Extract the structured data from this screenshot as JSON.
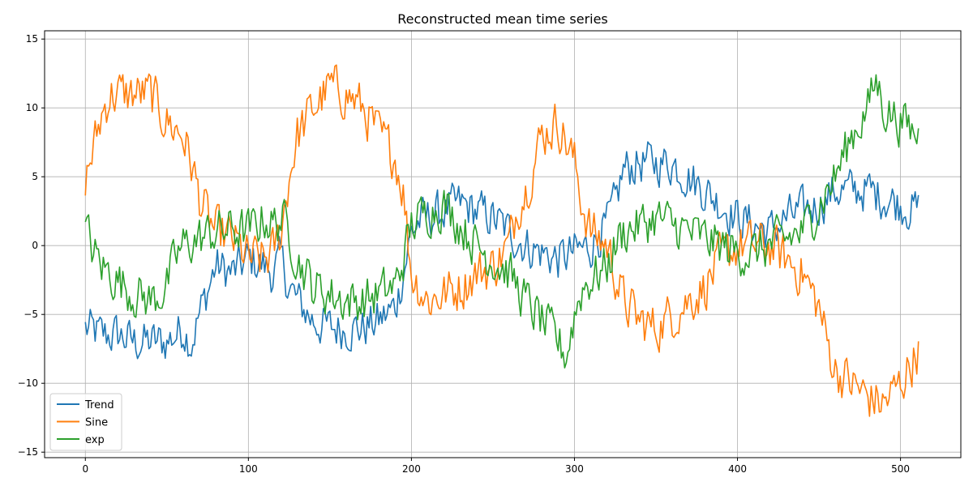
{
  "chart_data": {
    "type": "line",
    "title": "Reconstructed mean time series",
    "xlabel": "",
    "ylabel": "",
    "xlim": [
      -25,
      537
    ],
    "ylim": [
      -15.4,
      15.6
    ],
    "xticks": [
      0,
      100,
      200,
      300,
      400,
      500
    ],
    "yticks": [
      -15,
      -10,
      -5,
      0,
      5,
      10,
      15
    ],
    "grid": true,
    "legend_position": "lower-left",
    "n_points": 512,
    "series": [
      {
        "name": "Trend",
        "color": "#1f77b4",
        "keyframes": [
          [
            0,
            -6
          ],
          [
            10,
            -6.5
          ],
          [
            20,
            -6.5
          ],
          [
            30,
            -7
          ],
          [
            40,
            -7
          ],
          [
            50,
            -7
          ],
          [
            60,
            -6
          ],
          [
            65,
            -7
          ],
          [
            70,
            -5
          ],
          [
            80,
            -1.5
          ],
          [
            90,
            -2
          ],
          [
            100,
            -1
          ],
          [
            110,
            -1.5
          ],
          [
            115,
            -2
          ],
          [
            120,
            -1
          ],
          [
            125,
            -3
          ],
          [
            130,
            -4
          ],
          [
            140,
            -5.5
          ],
          [
            150,
            -6
          ],
          [
            160,
            -6
          ],
          [
            170,
            -6
          ],
          [
            180,
            -5.5
          ],
          [
            190,
            -4.5
          ],
          [
            195,
            -2
          ],
          [
            200,
            1
          ],
          [
            205,
            1.8
          ],
          [
            210,
            2
          ],
          [
            220,
            2.5
          ],
          [
            230,
            3
          ],
          [
            240,
            2.5
          ],
          [
            250,
            2
          ],
          [
            260,
            1
          ],
          [
            270,
            0
          ],
          [
            280,
            -0.5
          ],
          [
            290,
            -1
          ],
          [
            300,
            -0.5
          ],
          [
            310,
            0
          ],
          [
            320,
            1.5
          ],
          [
            325,
            3
          ],
          [
            330,
            5.5
          ],
          [
            340,
            6
          ],
          [
            350,
            6
          ],
          [
            360,
            6
          ],
          [
            370,
            5
          ],
          [
            380,
            4
          ],
          [
            390,
            3
          ],
          [
            400,
            2
          ],
          [
            410,
            1.5
          ],
          [
            420,
            1
          ],
          [
            430,
            2
          ],
          [
            440,
            2.5
          ],
          [
            450,
            3
          ],
          [
            460,
            4
          ],
          [
            470,
            4
          ],
          [
            480,
            4
          ],
          [
            490,
            3.5
          ],
          [
            500,
            3
          ],
          [
            511,
            2.5
          ]
        ],
        "noise": 0.9
      },
      {
        "name": "Sine",
        "color": "#ff7f0e",
        "keyframes": [
          [
            0,
            5
          ],
          [
            5,
            7
          ],
          [
            10,
            9.5
          ],
          [
            15,
            11
          ],
          [
            20,
            11
          ],
          [
            30,
            11
          ],
          [
            40,
            11
          ],
          [
            50,
            9
          ],
          [
            60,
            8
          ],
          [
            65,
            6
          ],
          [
            70,
            3.5
          ],
          [
            75,
            2
          ],
          [
            80,
            1
          ],
          [
            90,
            0.5
          ],
          [
            100,
            -1
          ],
          [
            110,
            -1
          ],
          [
            115,
            -0.5
          ],
          [
            120,
            1
          ],
          [
            125,
            5
          ],
          [
            130,
            8
          ],
          [
            140,
            10
          ],
          [
            150,
            11.5
          ],
          [
            160,
            11
          ],
          [
            170,
            10
          ],
          [
            180,
            8
          ],
          [
            190,
            6.5
          ],
          [
            195,
            4
          ],
          [
            200,
            -2
          ],
          [
            205,
            -3
          ],
          [
            210,
            -4
          ],
          [
            220,
            -3.5
          ],
          [
            230,
            -3
          ],
          [
            240,
            -2
          ],
          [
            250,
            -1.5
          ],
          [
            260,
            0
          ],
          [
            265,
            3
          ],
          [
            270,
            4
          ],
          [
            280,
            8
          ],
          [
            290,
            9
          ],
          [
            300,
            6
          ],
          [
            305,
            3
          ],
          [
            310,
            1
          ],
          [
            320,
            0
          ],
          [
            325,
            -2
          ],
          [
            330,
            -4
          ],
          [
            340,
            -5.5
          ],
          [
            350,
            -6
          ],
          [
            360,
            -5
          ],
          [
            370,
            -4
          ],
          [
            380,
            -3
          ],
          [
            390,
            -1
          ],
          [
            400,
            0
          ],
          [
            410,
            0
          ],
          [
            420,
            0
          ],
          [
            430,
            -1
          ],
          [
            440,
            -2
          ],
          [
            450,
            -4.5
          ],
          [
            455,
            -7
          ],
          [
            460,
            -9
          ],
          [
            470,
            -10
          ],
          [
            480,
            -11
          ],
          [
            490,
            -11.5
          ],
          [
            500,
            -10
          ],
          [
            511,
            -7.5
          ]
        ],
        "noise": 1.0
      },
      {
        "name": "exp",
        "color": "#2ca02c",
        "keyframes": [
          [
            0,
            1.3
          ],
          [
            5,
            -0.5
          ],
          [
            10,
            -1.5
          ],
          [
            20,
            -2.5
          ],
          [
            30,
            -3.5
          ],
          [
            40,
            -4
          ],
          [
            50,
            -3
          ],
          [
            55,
            -1
          ],
          [
            60,
            0
          ],
          [
            70,
            0.5
          ],
          [
            80,
            1
          ],
          [
            90,
            1.2
          ],
          [
            100,
            1
          ],
          [
            105,
            1.5
          ],
          [
            110,
            2
          ],
          [
            115,
            1.5
          ],
          [
            120,
            2
          ],
          [
            125,
            1
          ],
          [
            130,
            -1
          ],
          [
            135,
            -2
          ],
          [
            140,
            -3
          ],
          [
            150,
            -3.5
          ],
          [
            160,
            -4
          ],
          [
            170,
            -4
          ],
          [
            180,
            -3.5
          ],
          [
            190,
            -3
          ],
          [
            195,
            -1
          ],
          [
            200,
            1.5
          ],
          [
            210,
            2.5
          ],
          [
            220,
            3
          ],
          [
            230,
            1.5
          ],
          [
            240,
            0
          ],
          [
            250,
            -1
          ],
          [
            260,
            -2
          ],
          [
            270,
            -4
          ],
          [
            280,
            -5.5
          ],
          [
            290,
            -7
          ],
          [
            295,
            -8
          ],
          [
            300,
            -5
          ],
          [
            305,
            -3
          ],
          [
            310,
            -2.5
          ],
          [
            320,
            -1.5
          ],
          [
            325,
            0
          ],
          [
            330,
            1
          ],
          [
            340,
            1.5
          ],
          [
            350,
            2
          ],
          [
            360,
            1.5
          ],
          [
            370,
            1
          ],
          [
            380,
            0.5
          ],
          [
            390,
            0
          ],
          [
            400,
            -0.5
          ],
          [
            410,
            -0.5
          ],
          [
            420,
            0
          ],
          [
            430,
            0.5
          ],
          [
            440,
            1
          ],
          [
            450,
            3
          ],
          [
            460,
            5
          ],
          [
            470,
            8
          ],
          [
            480,
            10
          ],
          [
            485,
            12
          ],
          [
            490,
            10
          ],
          [
            500,
            9
          ],
          [
            511,
            8
          ]
        ],
        "noise": 0.95
      }
    ]
  }
}
